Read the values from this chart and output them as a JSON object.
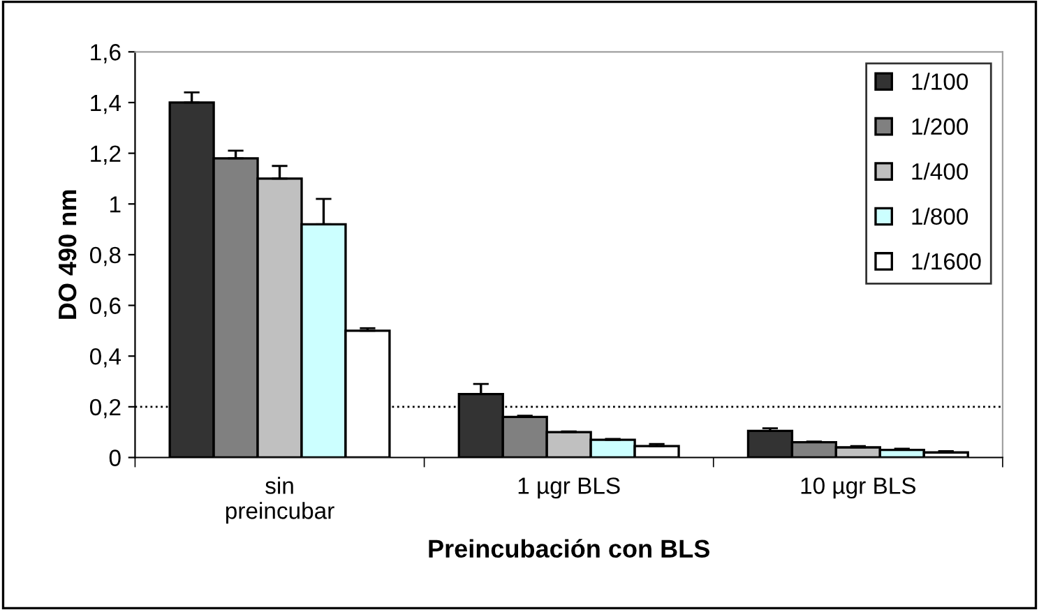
{
  "chart_data": {
    "type": "bar",
    "xlabel": "Preincubación con BLS",
    "ylabel": "DO 490 nm",
    "categories": [
      "sin\npreincubar",
      "1 µgr BLS",
      "10 µgr BLS"
    ],
    "series": [
      {
        "name": "1/100",
        "color": "#333333",
        "values": [
          1.4,
          0.25,
          0.105
        ],
        "errors": [
          0.04,
          0.04,
          0.01
        ]
      },
      {
        "name": "1/200",
        "color": "#808080",
        "values": [
          1.18,
          0.16,
          0.06
        ],
        "errors": [
          0.03,
          0.005,
          0.003
        ]
      },
      {
        "name": "1/400",
        "color": "#c0c0c0",
        "values": [
          1.1,
          0.1,
          0.04
        ],
        "errors": [
          0.05,
          0.003,
          0.005
        ]
      },
      {
        "name": "1/800",
        "color": "#ccffff",
        "values": [
          0.92,
          0.07,
          0.03
        ],
        "errors": [
          0.1,
          0.003,
          0.005
        ]
      },
      {
        "name": "1/1600",
        "color": "#ffffff",
        "values": [
          0.5,
          0.045,
          0.02
        ],
        "errors": [
          0.01,
          0.008,
          0.005
        ]
      }
    ],
    "ylim": [
      0,
      1.6
    ],
    "yticks": [
      0,
      {
        "value": 0.2,
        "label": "0,2"
      },
      {
        "value": 0.4,
        "label": "0,4"
      },
      {
        "value": 0.6,
        "label": "0,6"
      },
      {
        "value": 0.8,
        "label": "0,8"
      },
      1,
      {
        "value": 1.2,
        "label": "1,2"
      },
      {
        "value": 1.4,
        "label": "1,4"
      },
      {
        "value": 1.6,
        "label": "1,6"
      }
    ],
    "ref_lines": [
      {
        "axis": "y",
        "value": 0.2,
        "line_style": "dotted",
        "color": "#000000"
      }
    ],
    "grid": false,
    "legend": "top right"
  }
}
